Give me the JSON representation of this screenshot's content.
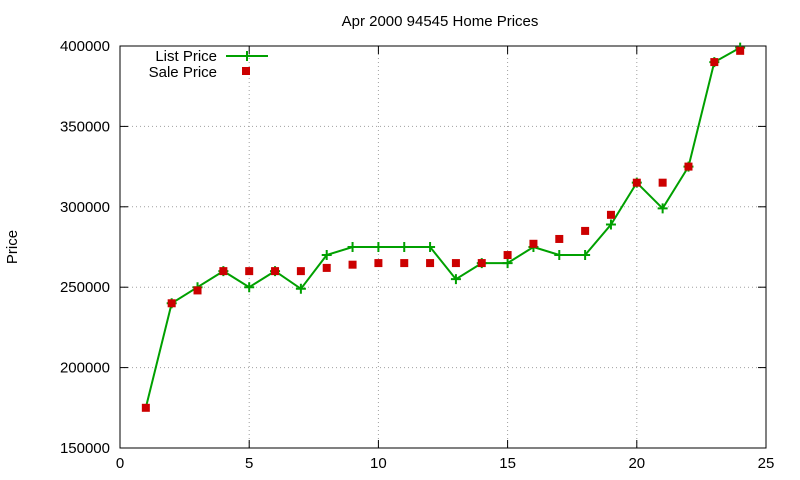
{
  "chart_data": {
    "type": "line",
    "title": "Apr 2000 94545 Home Prices",
    "xlabel": "",
    "ylabel": "Price",
    "xlim": [
      0,
      25
    ],
    "ylim": [
      150000,
      400000
    ],
    "x_ticks": [
      0,
      5,
      10,
      15,
      20,
      25
    ],
    "y_ticks": [
      150000,
      200000,
      250000,
      300000,
      350000,
      400000
    ],
    "x_tick_labels": [
      "0",
      "5",
      "10",
      "15",
      "20",
      "25"
    ],
    "y_tick_labels": [
      "150000",
      "200000",
      "250000",
      "300000",
      "350000",
      "400000"
    ],
    "grid": true,
    "legend_position": "top-left",
    "series": [
      {
        "name": "List Price",
        "style": "line-with-plus-markers",
        "color": "#00a000",
        "x": [
          2,
          3,
          4,
          5,
          6,
          7,
          8,
          9,
          10,
          11,
          12,
          13,
          14,
          15,
          16,
          17,
          18,
          19,
          20,
          21,
          22,
          23,
          24
        ],
        "values": [
          240000,
          250000,
          260000,
          250000,
          260000,
          249000,
          270000,
          275000,
          275000,
          275000,
          275000,
          255000,
          265000,
          265000,
          275000,
          270000,
          270000,
          289000,
          315000,
          299000,
          325000,
          390000,
          399000
        ],
        "line_start": [
          1,
          175000
        ]
      },
      {
        "name": "Sale Price",
        "style": "square-markers",
        "color": "#cc0000",
        "x": [
          1,
          2,
          3,
          4,
          5,
          6,
          7,
          8,
          9,
          10,
          11,
          12,
          13,
          14,
          15,
          16,
          17,
          18,
          19,
          20,
          21,
          22,
          23,
          24
        ],
        "values": [
          175000,
          240000,
          248000,
          260000,
          260000,
          260000,
          260000,
          262000,
          264000,
          265000,
          265000,
          265000,
          265000,
          265000,
          270000,
          277000,
          280000,
          285000,
          295000,
          315000,
          315000,
          325000,
          390000,
          397000
        ]
      }
    ]
  }
}
